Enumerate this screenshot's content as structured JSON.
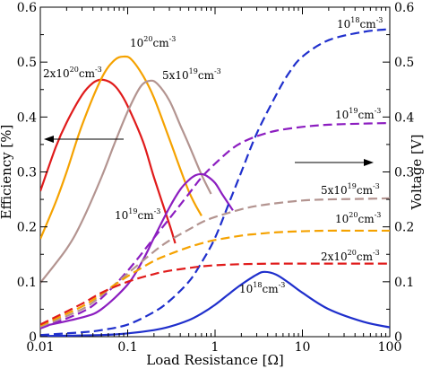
{
  "chart_data": {
    "type": "line",
    "xlabel": "Load Resistance [Ω]",
    "ylabel_left": "Efficiency [%]",
    "ylabel_right": "Voltage [V]",
    "x_scale": "log",
    "xlim": [
      0.01,
      100
    ],
    "ylim_left": [
      0,
      0.6
    ],
    "ylim_right": [
      0,
      0.6
    ],
    "x_ticks": [
      {
        "value": 0.01,
        "label": "0.01"
      },
      {
        "value": 0.1,
        "label": "0.1"
      },
      {
        "value": 1,
        "label": "1"
      },
      {
        "value": 10,
        "label": "10"
      },
      {
        "value": 100,
        "label": "100"
      }
    ],
    "y_ticks_left": [
      "0",
      "0.1",
      "0.2",
      "0.3",
      "0.4",
      "0.5",
      "0.6"
    ],
    "y_ticks_right": [
      "0",
      "0.1",
      "0.2",
      "0.3",
      "0.4",
      "0.5",
      "0.6"
    ],
    "grid": false,
    "series": [
      {
        "id": "eff-2e20",
        "axis": "left",
        "style": "solid",
        "color": "#e01b1b",
        "x": [
          0.01,
          0.015,
          0.02,
          0.03,
          0.04,
          0.05,
          0.065,
          0.08,
          0.1,
          0.15,
          0.2,
          0.3,
          0.35
        ],
        "y": [
          0.265,
          0.345,
          0.39,
          0.44,
          0.462,
          0.468,
          0.462,
          0.447,
          0.42,
          0.355,
          0.29,
          0.205,
          0.17
        ]
      },
      {
        "id": "eff-1e20",
        "axis": "left",
        "style": "solid",
        "color": "#f5a200",
        "x": [
          0.01,
          0.015,
          0.02,
          0.03,
          0.05,
          0.07,
          0.09,
          0.11,
          0.15,
          0.2,
          0.3,
          0.5,
          0.7
        ],
        "y": [
          0.178,
          0.245,
          0.3,
          0.385,
          0.47,
          0.503,
          0.51,
          0.505,
          0.475,
          0.435,
          0.36,
          0.265,
          0.22
        ]
      },
      {
        "id": "eff-5e19",
        "axis": "left",
        "style": "solid",
        "color": "#b39490",
        "x": [
          0.01,
          0.02,
          0.03,
          0.05,
          0.07,
          0.1,
          0.14,
          0.18,
          0.22,
          0.3,
          0.4,
          0.5,
          0.7,
          0.9
        ],
        "y": [
          0.098,
          0.16,
          0.21,
          0.29,
          0.35,
          0.41,
          0.455,
          0.466,
          0.46,
          0.43,
          0.385,
          0.35,
          0.295,
          0.26
        ]
      },
      {
        "id": "eff-1e19",
        "axis": "left",
        "style": "solid",
        "color": "#8c1ec0",
        "x": [
          0.01,
          0.03,
          0.05,
          0.1,
          0.15,
          0.2,
          0.3,
          0.4,
          0.5,
          0.6,
          0.7,
          0.8,
          1.0,
          1.2,
          1.6
        ],
        "y": [
          0.018,
          0.035,
          0.05,
          0.095,
          0.14,
          0.18,
          0.235,
          0.268,
          0.285,
          0.294,
          0.296,
          0.293,
          0.28,
          0.26,
          0.23
        ]
      },
      {
        "id": "eff-1e18",
        "axis": "left",
        "style": "solid",
        "color": "#1f2fcc",
        "x": [
          0.01,
          0.05,
          0.1,
          0.2,
          0.3,
          0.5,
          0.7,
          1,
          1.5,
          2,
          3,
          3.7,
          5,
          7,
          10,
          20,
          50,
          100
        ],
        "y": [
          0.001,
          0.003,
          0.006,
          0.012,
          0.018,
          0.03,
          0.042,
          0.058,
          0.08,
          0.095,
          0.113,
          0.118,
          0.113,
          0.098,
          0.08,
          0.05,
          0.027,
          0.017
        ]
      },
      {
        "id": "volt-1e18",
        "axis": "right",
        "style": "dashed",
        "color": "#1f2fcc",
        "x": [
          0.01,
          0.03,
          0.05,
          0.1,
          0.2,
          0.3,
          0.5,
          0.7,
          1,
          1.5,
          2,
          3,
          5,
          7,
          10,
          20,
          50,
          100
        ],
        "y": [
          0.003,
          0.008,
          0.012,
          0.022,
          0.045,
          0.065,
          0.1,
          0.135,
          0.18,
          0.25,
          0.3,
          0.37,
          0.44,
          0.48,
          0.51,
          0.54,
          0.555,
          0.56
        ]
      },
      {
        "id": "volt-1e19",
        "axis": "right",
        "style": "dashed",
        "color": "#8c1ec0",
        "x": [
          0.01,
          0.03,
          0.05,
          0.1,
          0.2,
          0.3,
          0.5,
          0.7,
          1,
          1.5,
          2,
          3,
          5,
          10,
          20,
          50,
          100
        ],
        "y": [
          0.015,
          0.045,
          0.07,
          0.12,
          0.18,
          0.215,
          0.26,
          0.29,
          0.315,
          0.34,
          0.353,
          0.365,
          0.375,
          0.382,
          0.386,
          0.388,
          0.389
        ]
      },
      {
        "id": "volt-5e19",
        "axis": "right",
        "style": "dashed",
        "color": "#b39490",
        "x": [
          0.01,
          0.03,
          0.05,
          0.1,
          0.2,
          0.3,
          0.5,
          0.7,
          1,
          2,
          3,
          5,
          10,
          20,
          50,
          100
        ],
        "y": [
          0.018,
          0.05,
          0.075,
          0.115,
          0.155,
          0.175,
          0.195,
          0.208,
          0.218,
          0.232,
          0.238,
          0.243,
          0.248,
          0.25,
          0.251,
          0.252
        ]
      },
      {
        "id": "volt-1e20",
        "axis": "right",
        "style": "dashed",
        "color": "#f5a200",
        "x": [
          0.01,
          0.03,
          0.05,
          0.1,
          0.2,
          0.3,
          0.5,
          0.7,
          1,
          2,
          3,
          5,
          10,
          20,
          50,
          100
        ],
        "y": [
          0.02,
          0.055,
          0.078,
          0.11,
          0.138,
          0.15,
          0.163,
          0.17,
          0.176,
          0.184,
          0.187,
          0.19,
          0.192,
          0.193,
          0.193,
          0.193
        ]
      },
      {
        "id": "volt-2e20",
        "axis": "right",
        "style": "dashed",
        "color": "#e01b1b",
        "x": [
          0.01,
          0.03,
          0.05,
          0.1,
          0.2,
          0.3,
          0.5,
          0.7,
          1,
          2,
          5,
          10,
          20,
          50,
          100
        ],
        "y": [
          0.022,
          0.06,
          0.08,
          0.1,
          0.114,
          0.12,
          0.125,
          0.128,
          0.13,
          0.132,
          0.133,
          0.133,
          0.133,
          0.133,
          0.133
        ]
      }
    ],
    "annotations": [
      {
        "id": "ann-2e20-eff",
        "base": "2x10",
        "exp": "20",
        "unit": "cm",
        "unit_exp": "-3"
      },
      {
        "id": "ann-1e20-eff",
        "base": "10",
        "exp": "20",
        "unit": "cm",
        "unit_exp": "-3"
      },
      {
        "id": "ann-5e19-eff",
        "base": "5x10",
        "exp": "19",
        "unit": "cm",
        "unit_exp": "-3"
      },
      {
        "id": "ann-1e19-eff",
        "base": "10",
        "exp": "19",
        "unit": "cm",
        "unit_exp": "-3"
      },
      {
        "id": "ann-1e18-eff",
        "base": "10",
        "exp": "18",
        "unit": "cm",
        "unit_exp": "-3"
      },
      {
        "id": "ann-1e18-volt",
        "base": "10",
        "exp": "18",
        "unit": "cm",
        "unit_exp": "-3"
      },
      {
        "id": "ann-1e19-volt",
        "base": "10",
        "exp": "19",
        "unit": "cm",
        "unit_exp": "-3"
      },
      {
        "id": "ann-5e19-volt",
        "base": "5x10",
        "exp": "19",
        "unit": "cm",
        "unit_exp": "-3"
      },
      {
        "id": "ann-1e20-volt",
        "base": "10",
        "exp": "20",
        "unit": "cm",
        "unit_exp": "-3"
      },
      {
        "id": "ann-2e20-volt",
        "base": "2x10",
        "exp": "20",
        "unit": "cm",
        "unit_exp": "-3"
      }
    ],
    "arrows": [
      {
        "id": "arrow-left",
        "points_to": "left-axis"
      },
      {
        "id": "arrow-right",
        "points_to": "right-axis"
      }
    ]
  }
}
